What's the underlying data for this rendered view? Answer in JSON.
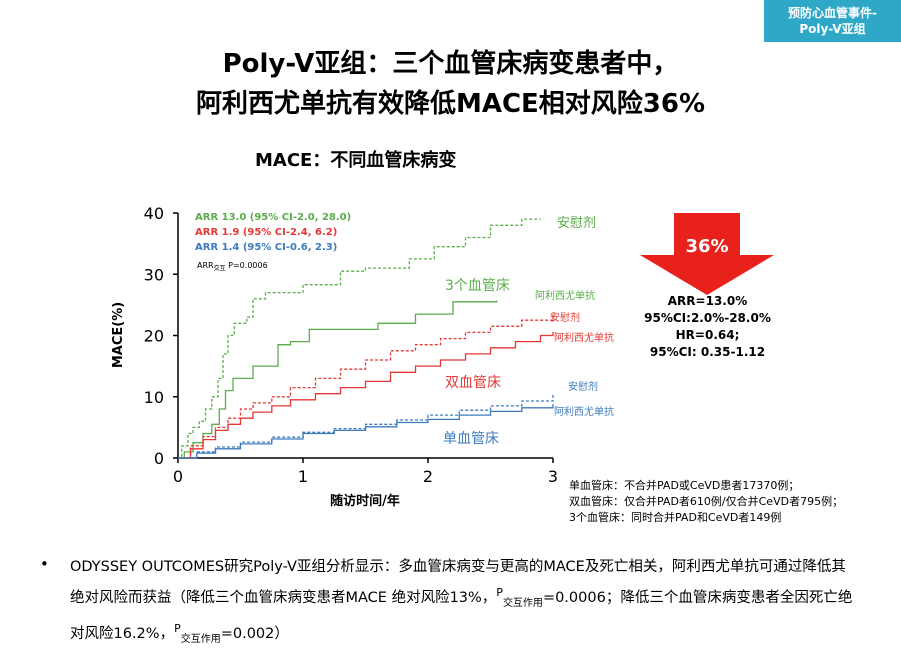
{
  "tag": {
    "line1": "预防心血管事件-",
    "line2": "Poly-V亚组"
  },
  "title": {
    "line1": "Poly-V亚组：三个血管床病变患者中，",
    "line2": "阿利西尤单抗有效降低MACE相对风险36%"
  },
  "chart_data": {
    "type": "line",
    "title": "MACE：不同血管床病变",
    "xlabel": "随访时间/年",
    "ylabel": "MACE(%)",
    "xlim": [
      0,
      3
    ],
    "ylim": [
      0,
      40
    ],
    "xticks": [
      "0",
      "1",
      "2",
      "3"
    ],
    "yticks": [
      "0",
      "10",
      "20",
      "30",
      "40"
    ],
    "legend": [
      {
        "text": "ARR 13.0 (95% CI-2.0, 28.0)",
        "color": "#5aad4b"
      },
      {
        "text": "ARR 1.9 (95% CI-2.4, 6.2)",
        "color": "#e53935"
      },
      {
        "text": "ARR 1.4 (95% CI-0.6, 2.3)",
        "color": "#3d7bbf"
      }
    ],
    "p_main": "ARR",
    "p_sub": "交互",
    "p_value": "P=0.0006",
    "groups": [
      {
        "name": "3个血管床",
        "placebo_label": "安慰剂",
        "drug_label": "阿利西尤单抗",
        "color": "#5aad4b"
      },
      {
        "name": "双血管床",
        "placebo_label": "安慰剂",
        "drug_label": "阿利西尤单抗",
        "color": "#e53935"
      },
      {
        "name": "单血管床",
        "placebo_label": "安慰剂",
        "drug_label": "阿利西尤单抗",
        "color": "#3d7bbf"
      }
    ],
    "series": [
      {
        "name": "3个血管床 安慰剂",
        "color": "#5aad4b",
        "dashed": true,
        "points": [
          [
            0,
            0
          ],
          [
            0.03,
            2
          ],
          [
            0.08,
            4
          ],
          [
            0.12,
            5
          ],
          [
            0.17,
            6
          ],
          [
            0.22,
            8
          ],
          [
            0.27,
            10
          ],
          [
            0.32,
            13
          ],
          [
            0.36,
            17
          ],
          [
            0.4,
            20
          ],
          [
            0.45,
            22
          ],
          [
            0.55,
            23
          ],
          [
            0.6,
            26
          ],
          [
            0.7,
            27
          ],
          [
            1.0,
            28.3
          ],
          [
            1.3,
            30.5
          ],
          [
            1.5,
            31
          ],
          [
            1.85,
            32.5
          ],
          [
            2.05,
            34.5
          ],
          [
            2.3,
            36
          ],
          [
            2.5,
            38
          ],
          [
            2.75,
            39
          ],
          [
            2.9,
            39
          ]
        ]
      },
      {
        "name": "3个血管床 阿利西尤单抗",
        "color": "#5aad4b",
        "dashed": false,
        "points": [
          [
            0,
            0
          ],
          [
            0.05,
            1
          ],
          [
            0.12,
            2.5
          ],
          [
            0.2,
            4
          ],
          [
            0.27,
            5.5
          ],
          [
            0.33,
            8
          ],
          [
            0.38,
            11
          ],
          [
            0.44,
            13
          ],
          [
            0.6,
            15
          ],
          [
            0.8,
            18.5
          ],
          [
            0.9,
            19
          ],
          [
            1.05,
            21
          ],
          [
            1.3,
            21
          ],
          [
            1.6,
            22
          ],
          [
            1.9,
            23.5
          ],
          [
            2.2,
            25.5
          ],
          [
            2.55,
            25.7
          ]
        ]
      },
      {
        "name": "双血管床 安慰剂",
        "color": "#e53935",
        "dashed": true,
        "points": [
          [
            0,
            0
          ],
          [
            0.1,
            2
          ],
          [
            0.2,
            3.5
          ],
          [
            0.3,
            5
          ],
          [
            0.4,
            6.5
          ],
          [
            0.5,
            8
          ],
          [
            0.6,
            9
          ],
          [
            0.75,
            10
          ],
          [
            0.9,
            11.5
          ],
          [
            1.1,
            13
          ],
          [
            1.3,
            14.5
          ],
          [
            1.5,
            16
          ],
          [
            1.7,
            17.5
          ],
          [
            1.9,
            18.5
          ],
          [
            2.1,
            19.5
          ],
          [
            2.3,
            20.5
          ],
          [
            2.5,
            21.5
          ],
          [
            2.75,
            22.5
          ],
          [
            3.0,
            23.8
          ]
        ]
      },
      {
        "name": "双血管床 阿利西尤单抗",
        "color": "#e53935",
        "dashed": false,
        "points": [
          [
            0,
            0
          ],
          [
            0.1,
            1.5
          ],
          [
            0.2,
            3
          ],
          [
            0.3,
            4.5
          ],
          [
            0.4,
            5.5
          ],
          [
            0.5,
            6.5
          ],
          [
            0.6,
            7.5
          ],
          [
            0.75,
            8.5
          ],
          [
            0.9,
            9.5
          ],
          [
            1.1,
            10.5
          ],
          [
            1.3,
            11.5
          ],
          [
            1.5,
            12.5
          ],
          [
            1.7,
            14
          ],
          [
            1.9,
            15
          ],
          [
            2.1,
            16
          ],
          [
            2.3,
            17
          ],
          [
            2.5,
            18
          ],
          [
            2.7,
            19
          ],
          [
            2.9,
            20
          ],
          [
            3.0,
            20.6
          ]
        ]
      },
      {
        "name": "单血管床 安慰剂",
        "color": "#3d7bbf",
        "dashed": true,
        "points": [
          [
            0,
            0
          ],
          [
            0.15,
            1
          ],
          [
            0.3,
            1.8
          ],
          [
            0.5,
            2.6
          ],
          [
            0.75,
            3.4
          ],
          [
            1.0,
            4.2
          ],
          [
            1.25,
            4.8
          ],
          [
            1.5,
            5.5
          ],
          [
            1.75,
            6.2
          ],
          [
            2.0,
            7
          ],
          [
            2.25,
            7.8
          ],
          [
            2.5,
            8.5
          ],
          [
            2.75,
            9.3
          ],
          [
            3.0,
            10.3
          ]
        ]
      },
      {
        "name": "单血管床 阿利西尤单抗",
        "color": "#3d7bbf",
        "dashed": false,
        "points": [
          [
            0,
            0
          ],
          [
            0.15,
            0.8
          ],
          [
            0.3,
            1.5
          ],
          [
            0.5,
            2.3
          ],
          [
            0.75,
            3.1
          ],
          [
            1.0,
            4
          ],
          [
            1.25,
            4.5
          ],
          [
            1.5,
            5.1
          ],
          [
            1.75,
            5.8
          ],
          [
            2.0,
            6.3
          ],
          [
            2.25,
            7
          ],
          [
            2.5,
            7.6
          ],
          [
            2.75,
            8.2
          ],
          [
            3.0,
            8.8
          ]
        ]
      }
    ]
  },
  "arrow": {
    "percent": "36%",
    "color": "#e8211c"
  },
  "stats": {
    "arr": "ARR=13.0%",
    "ci": "95%CI:2.0%-28.0%",
    "hr": "HR=0.64;",
    "hr_ci": "95%CI: 0.35-1.12"
  },
  "notes": [
    "单血管床：不合并PAD或CeVD患者17370例；",
    "双血管床：仅合并PAD者610例/仅合并CeVD者795例；",
    "3个血管床：同时合并PAD和CeVD者149例"
  ],
  "bullet": {
    "marker": "•",
    "part1": "ODYSSEY OUTCOMES研究Poly-V亚组分析显示：多血管床病变与更高的MACE及死亡相关，阿利西尤单抗可通过降低其绝对风险而获益（降低三个血管床病变患者MACE 绝对风险13%，",
    "p1_letter": "P",
    "p1_sub": "交互作用",
    "part2": "=0.0006；降低三个血管床病变患者全因死亡绝对风险16.2%，",
    "p2_letter": "P",
    "p2_sub": "交互作用",
    "part3": "=0.002）"
  }
}
